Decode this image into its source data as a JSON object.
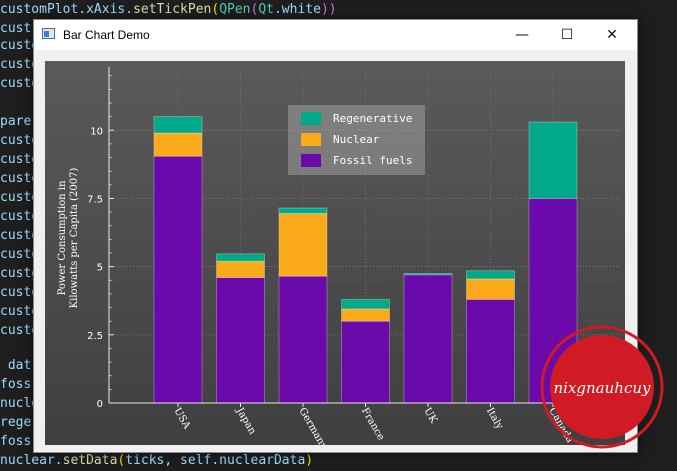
{
  "editor": {
    "lines": [
      {
        "y": 0,
        "segs": [
          [
            "customPlot",
            "c-var"
          ],
          [
            ".xAxis.",
            "c-var"
          ],
          [
            "setTickPen",
            "c-fn"
          ],
          [
            "(",
            "c-y"
          ],
          [
            "QPen",
            "c-cls"
          ],
          [
            "(",
            "c-p"
          ],
          [
            "Qt",
            "c-cls"
          ],
          [
            ".white",
            "c-var"
          ],
          [
            "))",
            "c-p"
          ]
        ]
      },
      {
        "y": 19,
        "segs": [
          [
            "cust",
            "c-var"
          ]
        ]
      },
      {
        "y": 36,
        "segs": [
          [
            "custo",
            "c-var"
          ]
        ]
      },
      {
        "y": 55,
        "segs": [
          [
            "custo",
            "c-var"
          ]
        ]
      },
      {
        "y": 74,
        "segs": [
          [
            "custo",
            "c-var"
          ]
        ]
      },
      {
        "y": 112,
        "segs": [
          [
            "pare",
            "c-var"
          ]
        ]
      },
      {
        "y": 131,
        "segs": [
          [
            "custo",
            "c-var"
          ]
        ]
      },
      {
        "y": 150,
        "segs": [
          [
            "custo",
            "c-var"
          ]
        ]
      },
      {
        "y": 169,
        "segs": [
          [
            "custo",
            "c-var"
          ]
        ]
      },
      {
        "y": 188,
        "segs": [
          [
            "custo",
            "c-var"
          ]
        ]
      },
      {
        "y": 207,
        "segs": [
          [
            "custo",
            "c-var"
          ]
        ]
      },
      {
        "y": 226,
        "segs": [
          [
            "custo",
            "c-var"
          ]
        ]
      },
      {
        "y": 245,
        "segs": [
          [
            "custo",
            "c-var"
          ]
        ]
      },
      {
        "y": 264,
        "segs": [
          [
            "custo",
            "c-var"
          ]
        ]
      },
      {
        "y": 283,
        "segs": [
          [
            "custo",
            "c-var"
          ]
        ]
      },
      {
        "y": 302,
        "segs": [
          [
            "custo",
            "c-var"
          ]
        ]
      },
      {
        "y": 321,
        "segs": [
          [
            "custo",
            "c-var"
          ]
        ]
      },
      {
        "y": 356,
        "segs": [
          [
            " dat",
            "c-var"
          ]
        ]
      },
      {
        "y": 375,
        "segs": [
          [
            "foss",
            "c-var"
          ]
        ]
      },
      {
        "y": 394,
        "segs": [
          [
            "nucle",
            "c-var"
          ]
        ]
      },
      {
        "y": 413,
        "segs": [
          [
            "rege",
            "c-var"
          ]
        ]
      },
      {
        "y": 432,
        "segs": [
          [
            "foss",
            "c-var"
          ]
        ]
      },
      {
        "y": 451,
        "segs": [
          [
            "nuclear",
            "c-var"
          ],
          [
            ".",
            "c-var"
          ],
          [
            "setData",
            "c-fn"
          ],
          [
            "(",
            "c-y"
          ],
          [
            "ticks",
            "c-var"
          ],
          [
            ", ",
            "c-var"
          ],
          [
            "self",
            "c-var"
          ],
          [
            ".nuclearData",
            "c-var"
          ],
          [
            ")",
            "c-y"
          ]
        ]
      }
    ]
  },
  "window": {
    "title": "Bar Chart Demo",
    "minimize_glyph": "—",
    "maximize_glyph": "☐",
    "close_glyph": "✕"
  },
  "chart_data": {
    "type": "bar",
    "stacked": true,
    "categories": [
      "USA",
      "Japan",
      "Germany",
      "France",
      "UK",
      "Italy",
      "Canada"
    ],
    "series": [
      {
        "name": "Fossil fuels",
        "color": "#6a0aaa",
        "values": [
          9.05,
          4.6,
          4.65,
          3.0,
          4.7,
          3.8,
          7.5
        ]
      },
      {
        "name": "Nuclear",
        "color": "#faa919",
        "values": [
          0.85,
          0.6,
          2.3,
          0.45,
          0.0,
          0.75,
          0.0
        ]
      },
      {
        "name": "Regenerative",
        "color": "#00a98a",
        "values": [
          0.6,
          0.27,
          0.2,
          0.35,
          0.05,
          0.3,
          2.8
        ]
      }
    ],
    "ylabel": "Power Consumption in\nKilowatts per Capita (2007)",
    "ylim": [
      0,
      12.1
    ],
    "yticks": [
      "0",
      "2.5",
      "5",
      "7.5",
      "10"
    ],
    "grid": true,
    "legend": {
      "placement": "top-center",
      "entries": [
        "Regenerative",
        "Nuclear",
        "Fossil fuels"
      ]
    },
    "background": {
      "top": "#5a5a5a",
      "bottom": "#3f3f3f"
    }
  },
  "watermark": {
    "text": "nixgnauhcuy",
    "color": "#d01a24"
  }
}
